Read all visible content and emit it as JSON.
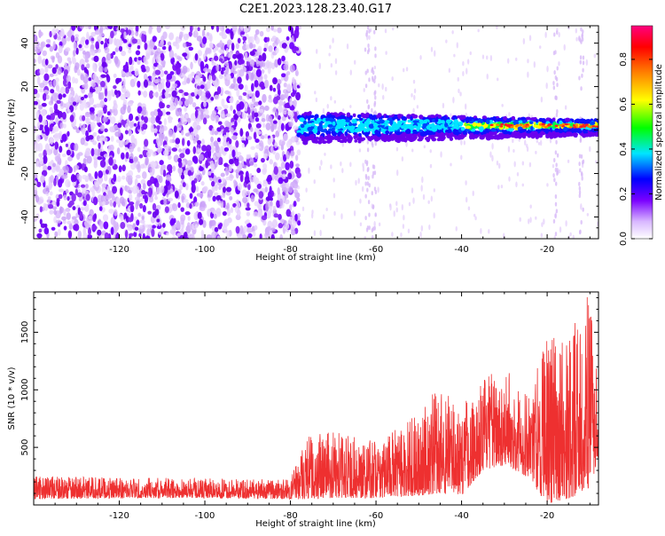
{
  "figure": {
    "title": "C2E1.2023.128.23.40.G17"
  },
  "chart_data": [
    {
      "type": "heatmap",
      "xlabel": "Height of straight line (km)",
      "ylabel": "Frequency (Hz)",
      "xlim": [
        -140,
        -8
      ],
      "ylim": [
        -50,
        48
      ],
      "x_ticks": [
        -120,
        -100,
        -80,
        -60,
        -40,
        -20
      ],
      "y_ticks": [
        -40,
        -20,
        0,
        20,
        40
      ],
      "colorbar": {
        "label": "Normalized spectral amplitude",
        "range": [
          0,
          0.95
        ],
        "ticks": [
          "0.0",
          "0.2",
          "0.4",
          "0.6",
          "0.8"
        ],
        "colormap": [
          "#ffffff",
          "#d9b8ff",
          "#7a00ff",
          "#0000ff",
          "#00e5ff",
          "#00ff00",
          "#ffff00",
          "#ff8000",
          "#ff0000",
          "#ff0080"
        ]
      },
      "regions": [
        {
          "label": "noise",
          "x_range": [
            -140,
            -78
          ],
          "freq_range": [
            -50,
            48
          ],
          "amplitude": "low"
        },
        {
          "label": "signal",
          "x_range": [
            -78,
            -8
          ],
          "center_freq_hz": 2,
          "freq_halfwidth_hz": 5,
          "amplitude": "increasing toward -8 km"
        }
      ]
    },
    {
      "type": "line",
      "xlabel": "Height of straight line (km)",
      "ylabel": "SNR (10 * v/v)",
      "xlim": [
        -140,
        -8
      ],
      "ylim": [
        0,
        1850
      ],
      "x_ticks": [
        -120,
        -100,
        -80,
        -60,
        -40,
        -20
      ],
      "y_ticks": [
        500,
        1000,
        1500
      ],
      "series": [
        {
          "color": "#ee3030",
          "envelope": [
            {
              "x": -140,
              "low": 50,
              "high": 250
            },
            {
              "x": -120,
              "low": 60,
              "high": 240
            },
            {
              "x": -100,
              "low": 60,
              "high": 230
            },
            {
              "x": -80,
              "low": 50,
              "high": 220
            },
            {
              "x": -77,
              "low": 50,
              "high": 600
            },
            {
              "x": -70,
              "low": 60,
              "high": 650
            },
            {
              "x": -60,
              "low": 60,
              "high": 550
            },
            {
              "x": -50,
              "low": 80,
              "high": 800
            },
            {
              "x": -45,
              "low": 100,
              "high": 1050
            },
            {
              "x": -40,
              "low": 80,
              "high": 900
            },
            {
              "x": -35,
              "low": 300,
              "high": 1100
            },
            {
              "x": -30,
              "low": 350,
              "high": 1200
            },
            {
              "x": -25,
              "low": 250,
              "high": 1000
            },
            {
              "x": -20,
              "low": 10,
              "high": 1500
            },
            {
              "x": -15,
              "low": 50,
              "high": 1500
            },
            {
              "x": -10,
              "low": 150,
              "high": 1850
            },
            {
              "x": -8,
              "low": 400,
              "high": 1100
            }
          ]
        }
      ]
    }
  ]
}
